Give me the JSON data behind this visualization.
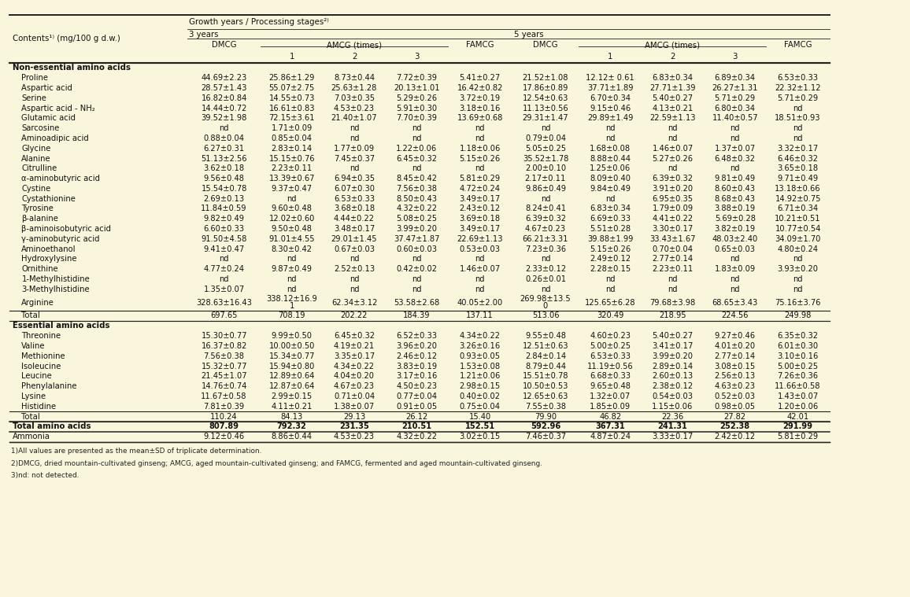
{
  "bg_color": "#faf6dc",
  "footnote1": "1)All values are presented as the mean±SD of triplicate determination.",
  "footnote2": "2)DMCG, dried mountain-cultivated ginseng; AMCG, aged mountain-cultivated ginseng; and FAMCG, fermented and aged mountain-cultivated ginseng.",
  "footnote3": "3)nd: not detected.",
  "rows": [
    {
      "type": "section_header",
      "label": "Non-essential amino acids",
      "values": [
        "",
        "",
        "",
        "",
        "",
        "",
        "",
        "",
        "",
        ""
      ]
    },
    {
      "type": "data",
      "label": "Proline",
      "values": [
        "44.69±2.23",
        "25.86±1.29",
        "8.73±0.44",
        "7.72±0.39",
        "5.41±0.27",
        "21.52±1.08",
        "12.12± 0.61",
        "6.83±0.34",
        "6.89±0.34",
        "6.53±0.33"
      ]
    },
    {
      "type": "data",
      "label": "Aspartic acid",
      "values": [
        "28.57±1.43",
        "55.07±2.75",
        "25.63±1.28",
        "20.13±1.01",
        "16.42±0.82",
        "17.86±0.89",
        "37.71±1.89",
        "27.71±1.39",
        "26.27±1.31",
        "22.32±1.12"
      ]
    },
    {
      "type": "data",
      "label": "Serine",
      "values": [
        "16.82±0.84",
        "14.55±0.73",
        "7.03±0.35",
        "5.29±0.26",
        "3.72±0.19",
        "12.54±0.63",
        "6.70±0.34",
        "5.40±0.27",
        "5.71±0.29",
        "5.71±0.29"
      ]
    },
    {
      "type": "data",
      "label": "Aspartic acid - NH₂",
      "values": [
        "14.44±0.72",
        "16.61±0.83",
        "4.53±0.23",
        "5.91±0.30",
        "3.18±0.16",
        "11.13±0.56",
        "9.15±0.46",
        "4.13±0.21",
        "6.80±0.34",
        "nd"
      ]
    },
    {
      "type": "data",
      "label": "Glutamic acid",
      "values": [
        "39.52±1.98",
        "72.15±3.61",
        "21.40±1.07",
        "7.70±0.39",
        "13.69±0.68",
        "29.31±1.47",
        "29.89±1.49",
        "22.59±1.13",
        "11.40±0.57",
        "18.51±0.93"
      ]
    },
    {
      "type": "data",
      "label": "Sarcosine",
      "values": [
        "nd",
        "1.71±0.09",
        "nd",
        "nd",
        "nd",
        "nd",
        "nd",
        "nd",
        "nd",
        "nd"
      ]
    },
    {
      "type": "data",
      "label": "Aminoadipic acid",
      "values": [
        "0.88±0.04",
        "0.85±0.04",
        "nd",
        "nd",
        "nd",
        "0.79±0.04",
        "nd",
        "nd",
        "nd",
        "nd"
      ]
    },
    {
      "type": "data",
      "label": "Glycine",
      "values": [
        "6.27±0.31",
        "2.83±0.14",
        "1.77±0.09",
        "1.22±0.06",
        "1.18±0.06",
        "5.05±0.25",
        "1.68±0.08",
        "1.46±0.07",
        "1.37±0.07",
        "3.32±0.17"
      ]
    },
    {
      "type": "data",
      "label": "Alanine",
      "values": [
        "51.13±2.56",
        "15.15±0.76",
        "7.45±0.37",
        "6.45±0.32",
        "5.15±0.26",
        "35.52±1.78",
        "8.88±0.44",
        "5.27±0.26",
        "6.48±0.32",
        "6.46±0.32"
      ]
    },
    {
      "type": "data",
      "label": "Citrulline",
      "values": [
        "3.62±0.18",
        "2.23±0.11",
        "nd",
        "nd",
        "nd",
        "2.00±0.10",
        "1.25±0.06",
        "nd",
        "nd",
        "3.65±0.18"
      ]
    },
    {
      "type": "data",
      "label": "α-aminobutyric acid",
      "values": [
        "9.56±0.48",
        "13.39±0.67",
        "6.94±0.35",
        "8.45±0.42",
        "5.81±0.29",
        "2.17±0.11",
        "8.09±0.40",
        "6.39±0.32",
        "9.81±0.49",
        "9.71±0.49"
      ]
    },
    {
      "type": "data",
      "label": "Cystine",
      "values": [
        "15.54±0.78",
        "9.37±0.47",
        "6.07±0.30",
        "7.56±0.38",
        "4.72±0.24",
        "9.86±0.49",
        "9.84±0.49",
        "3.91±0.20",
        "8.60±0.43",
        "13.18±0.66"
      ]
    },
    {
      "type": "data",
      "label": "Cystathionine",
      "values": [
        "2.69±0.13",
        "nd",
        "6.53±0.33",
        "8.50±0.43",
        "3.49±0.17",
        "nd",
        "nd",
        "6.95±0.35",
        "8.68±0.43",
        "14.92±0.75"
      ]
    },
    {
      "type": "data",
      "label": "Tyrosine",
      "values": [
        "11.84±0.59",
        "9.60±0.48",
        "3.68±0.18",
        "4.32±0.22",
        "2.43±0.12",
        "8.24±0.41",
        "6.83±0.34",
        "1.79±0.09",
        "3.88±0.19",
        "6.71±0.34"
      ]
    },
    {
      "type": "data",
      "label": "β-alanine",
      "values": [
        "9.82±0.49",
        "12.02±0.60",
        "4.44±0.22",
        "5.08±0.25",
        "3.69±0.18",
        "6.39±0.32",
        "6.69±0.33",
        "4.41±0.22",
        "5.69±0.28",
        "10.21±0.51"
      ]
    },
    {
      "type": "data",
      "label": "β-aminoisobutyric acid",
      "values": [
        "6.60±0.33",
        "9.50±0.48",
        "3.48±0.17",
        "3.99±0.20",
        "3.49±0.17",
        "4.67±0.23",
        "5.51±0.28",
        "3.30±0.17",
        "3.82±0.19",
        "10.77±0.54"
      ]
    },
    {
      "type": "data",
      "label": "γ-aminobutyric acid",
      "values": [
        "91.50±4.58",
        "91.01±4.55",
        "29.01±1.45",
        "37.47±1.87",
        "22.69±1.13",
        "66.21±3.31",
        "39.88±1.99",
        "33.43±1.67",
        "48.03±2.40",
        "34.09±1.70"
      ]
    },
    {
      "type": "data",
      "label": "Aminoethanol",
      "values": [
        "9.41±0.47",
        "8.30±0.42",
        "0.67±0.03",
        "0.60±0.03",
        "0.53±0.03",
        "7.23±0.36",
        "5.15±0.26",
        "0.70±0.04",
        "0.65±0.03",
        "4.80±0.24"
      ]
    },
    {
      "type": "data",
      "label": "Hydroxylysine",
      "values": [
        "nd",
        "nd",
        "nd",
        "nd",
        "nd",
        "nd",
        "2.49±0.12",
        "2.77±0.14",
        "nd",
        "nd"
      ]
    },
    {
      "type": "data",
      "label": "Ornithine",
      "values": [
        "4.77±0.24",
        "9.87±0.49",
        "2.52±0.13",
        "0.42±0.02",
        "1.46±0.07",
        "2.33±0.12",
        "2.28±0.15",
        "2.23±0.11",
        "1.83±0.09",
        "3.93±0.20"
      ]
    },
    {
      "type": "data",
      "label": "1-Methylhistidine",
      "values": [
        "nd",
        "nd",
        "nd",
        "nd",
        "nd",
        "0.26±0.01",
        "nd",
        "nd",
        "nd",
        "nd"
      ]
    },
    {
      "type": "data",
      "label": "3-Methylhistidine",
      "values": [
        "1.35±0.07",
        "nd",
        "nd",
        "nd",
        "nd",
        "nd",
        "nd",
        "nd",
        "nd",
        "nd"
      ]
    },
    {
      "type": "data_tall",
      "label": "Arginine",
      "values": [
        "328.63±16.43",
        "338.12±16.9\n1",
        "62.34±3.12",
        "53.58±2.68",
        "40.05±2.00",
        "269.98±13.5\n0",
        "125.65±6.28",
        "79.68±3.98",
        "68.65±3.43",
        "75.16±3.76"
      ]
    },
    {
      "type": "total",
      "label": "Total",
      "values": [
        "697.65",
        "708.19",
        "202.22",
        "184.39",
        "137.11",
        "513.06",
        "320.49",
        "218.95",
        "224.56",
        "249.98"
      ]
    },
    {
      "type": "section_header",
      "label": "Essential amino acids",
      "values": [
        "",
        "",
        "",
        "",
        "",
        "",
        "",
        "",
        "",
        ""
      ]
    },
    {
      "type": "data",
      "label": "Threonine",
      "values": [
        "15.30±0.77",
        "9.99±0.50",
        "6.45±0.32",
        "6.52±0.33",
        "4.34±0.22",
        "9.55±0.48",
        "4.60±0.23",
        "5.40±0.27",
        "9.27±0.46",
        "6.35±0.32"
      ]
    },
    {
      "type": "data",
      "label": "Valine",
      "values": [
        "16.37±0.82",
        "10.00±0.50",
        "4.19±0.21",
        "3.96±0.20",
        "3.26±0.16",
        "12.51±0.63",
        "5.00±0.25",
        "3.41±0.17",
        "4.01±0.20",
        "6.01±0.30"
      ]
    },
    {
      "type": "data",
      "label": "Methionine",
      "values": [
        "7.56±0.38",
        "15.34±0.77",
        "3.35±0.17",
        "2.46±0.12",
        "0.93±0.05",
        "2.84±0.14",
        "6.53±0.33",
        "3.99±0.20",
        "2.77±0.14",
        "3.10±0.16"
      ]
    },
    {
      "type": "data",
      "label": "Isoleucine",
      "values": [
        "15.32±0.77",
        "15.94±0.80",
        "4.34±0.22",
        "3.83±0.19",
        "1.53±0.08",
        "8.79±0.44",
        "11.19±0.56",
        "2.89±0.14",
        "3.08±0.15",
        "5.00±0.25"
      ]
    },
    {
      "type": "data",
      "label": "Leucine",
      "values": [
        "21.45±1.07",
        "12.89±0.64",
        "4.04±0.20",
        "3.17±0.16",
        "1.21±0.06",
        "15.51±0.78",
        "6.68±0.33",
        "2.60±0.13",
        "2.56±0.13",
        "7.26±0.36"
      ]
    },
    {
      "type": "data",
      "label": "Phenylalanine",
      "values": [
        "14.76±0.74",
        "12.87±0.64",
        "4.67±0.23",
        "4.50±0.23",
        "2.98±0.15",
        "10.50±0.53",
        "9.65±0.48",
        "2.38±0.12",
        "4.63±0.23",
        "11.66±0.58"
      ]
    },
    {
      "type": "data",
      "label": "Lysine",
      "values": [
        "11.67±0.58",
        "2.99±0.15",
        "0.71±0.04",
        "0.77±0.04",
        "0.40±0.02",
        "12.65±0.63",
        "1.32±0.07",
        "0.54±0.03",
        "0.52±0.03",
        "1.43±0.07"
      ]
    },
    {
      "type": "data",
      "label": "Histidine",
      "values": [
        "7.81±0.39",
        "4.11±0.21",
        "1.38±0.07",
        "0.91±0.05",
        "0.75±0.04",
        "7.55±0.38",
        "1.85±0.09",
        "1.15±0.06",
        "0.98±0.05",
        "1.20±0.06"
      ]
    },
    {
      "type": "total",
      "label": "Total",
      "values": [
        "110.24",
        "84.13",
        "29.13",
        "26.12",
        "15.40",
        "79.90",
        "46.82",
        "22.36",
        "27.82",
        "42.01"
      ]
    },
    {
      "type": "bold_total",
      "label": "Total amino acids",
      "values": [
        "807.89",
        "792.32",
        "231.35",
        "210.51",
        "152.51",
        "592.96",
        "367.31",
        "241.31",
        "252.38",
        "291.99"
      ]
    },
    {
      "type": "ammonia",
      "label": "Ammonia",
      "values": [
        "9.12±0.46",
        "8.86±0.44",
        "4.53±0.23",
        "4.32±0.22",
        "3.02±0.15",
        "7.46±0.37",
        "4.87±0.24",
        "3.33±0.17",
        "2.42±0.12",
        "5.81±0.29"
      ]
    }
  ]
}
